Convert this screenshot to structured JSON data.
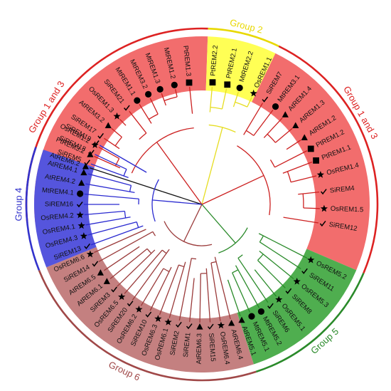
{
  "diagram": {
    "type": "circular-phylogenetic-tree",
    "center_color": "#111111",
    "groups": [
      {
        "id": "g13a",
        "label": "Group 1 and 3",
        "color": "#dd2222",
        "fill": "#f26d6d",
        "branch": "#cc2020",
        "start": -96,
        "end": 2,
        "label_angle": -58
      },
      {
        "id": "g2",
        "label": "Group 2",
        "color": "#e8d800",
        "fill": "#ffff55",
        "branch": "#e6dd20",
        "start": 2,
        "end": 26,
        "label_angle": 14
      },
      {
        "id": "g13b",
        "label": "Group 1 and 3",
        "color": "#dd2222",
        "fill": "#f26d6d",
        "branch": "#cc2020",
        "start": 26,
        "end": 113,
        "label_angle": 60
      },
      {
        "id": "g5",
        "label": "Group 5",
        "color": "#2a8a2a",
        "fill": "#4fae4f",
        "branch": "#2a8a2a",
        "start": 113,
        "end": 162,
        "label_angle": 138
      },
      {
        "id": "g6",
        "label": "Group 6",
        "color": "#a04848",
        "fill": "#c48080",
        "branch": "#9a3a3a",
        "start": 162,
        "end": 248,
        "label_angle": 205
      },
      {
        "id": "g4",
        "label": "Group 4",
        "color": "#3333cc",
        "fill": "#5555dd",
        "branch": "#2a2ad0",
        "start": 248,
        "end": 289,
        "label_angle": 270
      }
    ],
    "leaves": [
      {
        "name": "AtREM6.2",
        "marker": "triangle",
        "group": "none",
        "angle": -72
      },
      {
        "name": "PtREM3.2",
        "marker": "triangle",
        "group": "g13a",
        "angle": -66
      },
      {
        "name": "OsREM1.2",
        "marker": "star",
        "group": "g13a",
        "angle": -61
      },
      {
        "name": "SiREM17",
        "marker": "check",
        "group": "g13a",
        "angle": -56
      },
      {
        "name": "AtREM3.2",
        "marker": "triangle",
        "group": "g13a",
        "angle": -50
      },
      {
        "name": "OsREM1.3",
        "marker": "star",
        "group": "g13a",
        "angle": -44
      },
      {
        "name": "SiREM21",
        "marker": "check",
        "group": "g13a",
        "angle": -38
      },
      {
        "name": "MtREM1.1",
        "marker": "circle",
        "group": "g13a",
        "angle": -32
      },
      {
        "name": "MtREM3.2",
        "marker": "circle",
        "group": "g13a",
        "angle": -26
      },
      {
        "name": "MtREM1.3",
        "marker": "circle",
        "group": "g13a",
        "angle": -20
      },
      {
        "name": "MtREM1.2",
        "marker": "circle",
        "group": "g13a",
        "angle": -13
      },
      {
        "name": "PtREM1.3",
        "marker": "square",
        "group": "g13a",
        "angle": -6
      },
      {
        "name": "PtREM2.2",
        "marker": "square",
        "group": "g2",
        "angle": 5
      },
      {
        "name": "PtREM2.1",
        "marker": "square",
        "group": "g2",
        "angle": 12
      },
      {
        "name": "MtREM2.2",
        "marker": "circle",
        "group": "g2",
        "angle": 18
      },
      {
        "name": "OsREM1.1",
        "marker": "star",
        "group": "g2",
        "angle": 25
      },
      {
        "name": "SiREM7",
        "marker": "check",
        "group": "g13b",
        "angle": 31
      },
      {
        "name": "MtREM3.1",
        "marker": "circle",
        "group": "g13b",
        "angle": 37
      },
      {
        "name": "AtREM1.4",
        "marker": "triangle",
        "group": "g13b",
        "angle": 43
      },
      {
        "name": "AtREM1.3",
        "marker": "triangle",
        "group": "g13b",
        "angle": 50
      },
      {
        "name": "AtREM1.2",
        "marker": "triangle",
        "group": "g13b",
        "angle": 57
      },
      {
        "name": "PtREM1.2",
        "marker": "square",
        "group": "g13b",
        "angle": 63
      },
      {
        "name": "PtREM1.1",
        "marker": "square",
        "group": "g13b",
        "angle": 69
      },
      {
        "name": "OsREM1.4",
        "marker": "star",
        "group": "g13b",
        "angle": 76
      },
      {
        "name": "SiREM4",
        "marker": "check",
        "group": "g13b",
        "angle": 84
      },
      {
        "name": "OsREM1.5",
        "marker": "star",
        "group": "g13b",
        "angle": 92
      },
      {
        "name": "SiREM12",
        "marker": "check",
        "group": "g13b",
        "angle": 99
      },
      {
        "name": "OsREM5.2",
        "marker": "star",
        "group": "g5",
        "angle": 117
      },
      {
        "name": "SiREM11",
        "marker": "check",
        "group": "g5",
        "angle": 123
      },
      {
        "name": "OsREM5.3",
        "marker": "star",
        "group": "g5",
        "angle": 129
      },
      {
        "name": "SiREM8",
        "marker": "check",
        "group": "g5",
        "angle": 135
      },
      {
        "name": "OsREM5.1",
        "marker": "star",
        "group": "g5",
        "angle": 141
      },
      {
        "name": "SiREM6",
        "marker": "check",
        "group": "g5",
        "angle": 146
      },
      {
        "name": "MtREM5.2",
        "marker": "circle",
        "group": "g5",
        "angle": 151
      },
      {
        "name": "MtREM5.1",
        "marker": "circle",
        "group": "g5",
        "angle": 156
      },
      {
        "name": "AtREM5.1",
        "marker": "triangle",
        "group": "g5",
        "angle": 161
      },
      {
        "name": "AtREM6.4",
        "marker": "triangle",
        "group": "g6",
        "angle": 166
      },
      {
        "name": "OsREM6.4",
        "marker": "star",
        "group": "g6",
        "angle": 171
      },
      {
        "name": "SiREM15",
        "marker": "check",
        "group": "g6",
        "angle": 176
      },
      {
        "name": "AtREM6.3",
        "marker": "triangle",
        "group": "g6",
        "angle": 181
      },
      {
        "name": "SiREM1",
        "marker": "check",
        "group": "g6",
        "angle": 186
      },
      {
        "name": "SiREM2",
        "marker": "check",
        "group": "g6",
        "angle": 191
      },
      {
        "name": "OsREM6.1",
        "marker": "star",
        "group": "g6",
        "angle": 196
      },
      {
        "name": "OsREM6.3",
        "marker": "star",
        "group": "g6",
        "angle": 201
      },
      {
        "name": "SiREM10",
        "marker": "check",
        "group": "g6",
        "angle": 206
      },
      {
        "name": "OsREM6.2",
        "marker": "star",
        "group": "g6",
        "angle": 211
      },
      {
        "name": "SiREM20",
        "marker": "check",
        "group": "g6",
        "angle": 216
      },
      {
        "name": "OsREM6.5",
        "marker": "star",
        "group": "g6",
        "angle": 221
      },
      {
        "name": "SiREM3",
        "marker": "check",
        "group": "g6",
        "angle": 226
      },
      {
        "name": "AtREM6.1",
        "marker": "triangle",
        "group": "g6",
        "angle": 231
      },
      {
        "name": "AtREM6.5",
        "marker": "triangle",
        "group": "g6",
        "angle": 236
      },
      {
        "name": "SiREM14",
        "marker": "check",
        "group": "g6",
        "angle": 241
      },
      {
        "name": "OsREM6.6",
        "marker": "star",
        "group": "g6",
        "angle": 246
      },
      {
        "name": "SiREM13",
        "marker": "check",
        "group": "g4",
        "angle": 250
      },
      {
        "name": "OsREM4.3",
        "marker": "star",
        "group": "g4",
        "angle": 255
      },
      {
        "name": "OsREM4.1",
        "marker": "star",
        "group": "g4",
        "angle": 260
      },
      {
        "name": "OsREM4.2",
        "marker": "star",
        "group": "g4",
        "angle": 265
      },
      {
        "name": "SiREM16",
        "marker": "check",
        "group": "g4",
        "angle": 270
      },
      {
        "name": "MtREM4.1",
        "marker": "circle",
        "group": "g4",
        "angle": 275
      },
      {
        "name": "AtREM4.2",
        "marker": "triangle",
        "group": "g4",
        "angle": 280
      },
      {
        "name": "AtREM4.1",
        "marker": "triangle",
        "group": "g4",
        "angle": 285
      },
      {
        "name": "SiREM5",
        "marker": "check",
        "group": "g4",
        "angle": 290
      },
      {
        "name": "SiREM18",
        "marker": "check",
        "group": "g4",
        "angle": 295
      },
      {
        "name": "SiREM19",
        "marker": "check",
        "group": "g4",
        "angle": 300
      }
    ]
  }
}
